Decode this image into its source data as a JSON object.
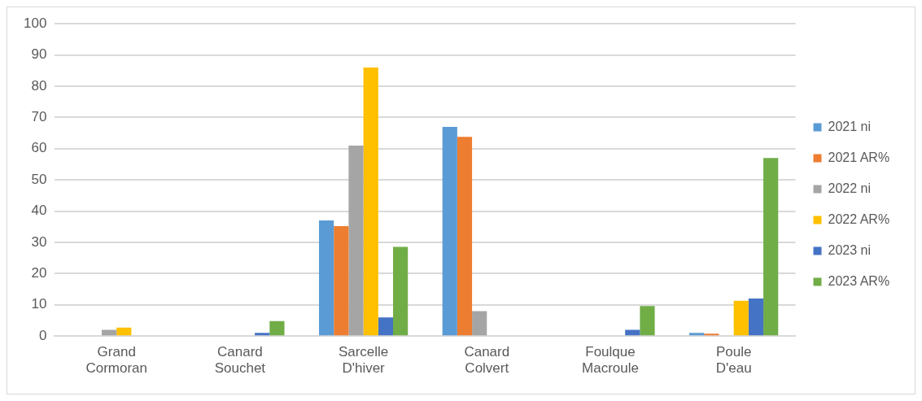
{
  "chart_data": {
    "type": "bar",
    "categories": [
      "Grand Cormoran",
      "Canard Souchet",
      "Sarcelle D'hiver",
      "Canard Colvert",
      "Foulque Macroule",
      "Poule D'eau"
    ],
    "series": [
      {
        "name": "2021 ni",
        "color": "#5b9bd5",
        "values": [
          0,
          0,
          37,
          67,
          0,
          1
        ]
      },
      {
        "name": "2021 AR%",
        "color": "#ed7d31",
        "values": [
          0,
          0,
          35.2,
          63.8,
          0,
          0.8
        ]
      },
      {
        "name": "2022 ni",
        "color": "#a5a5a5",
        "values": [
          2,
          0,
          61,
          8,
          0,
          0
        ]
      },
      {
        "name": "2022 AR%",
        "color": "#ffc000",
        "values": [
          2.7,
          0,
          86,
          0,
          0,
          11.3
        ]
      },
      {
        "name": "2023 ni",
        "color": "#4472c4",
        "values": [
          0,
          1,
          6,
          0,
          2,
          12
        ]
      },
      {
        "name": "2023 AR%",
        "color": "#70ad47",
        "values": [
          0,
          4.8,
          28.6,
          0,
          9.6,
          57
        ]
      }
    ],
    "ylim": [
      0,
      100
    ],
    "yticks": [
      0,
      10,
      20,
      30,
      40,
      50,
      60,
      70,
      80,
      90,
      100
    ],
    "grid": "y",
    "legend": "right"
  }
}
